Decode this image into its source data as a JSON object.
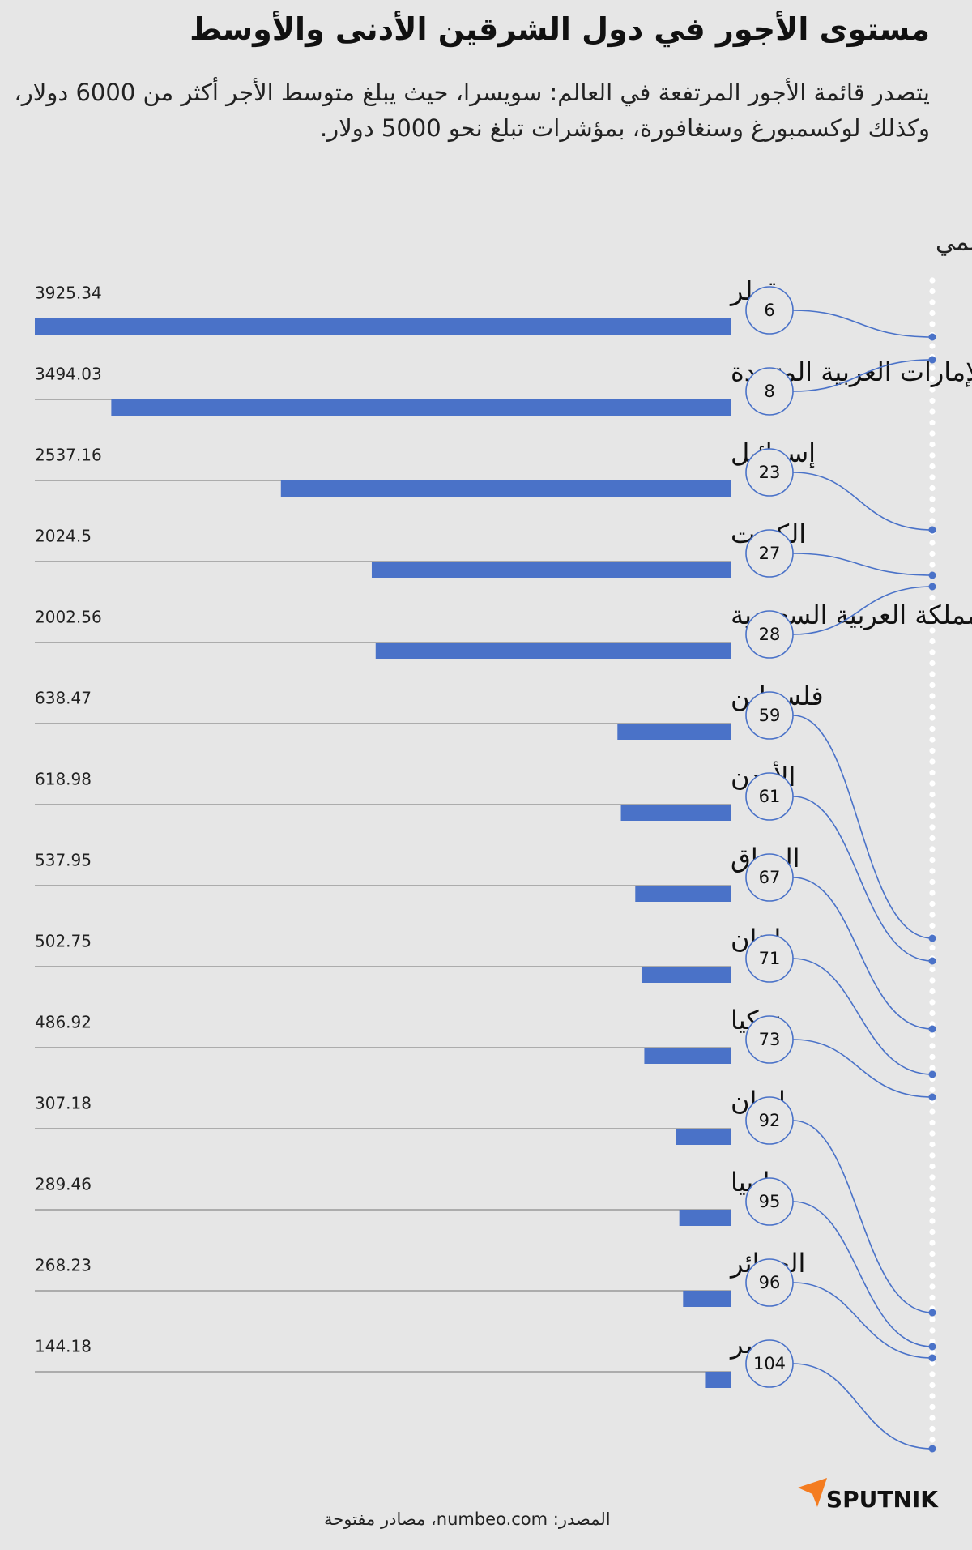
{
  "chart_data": {
    "type": "bar",
    "title": "مستوى الأجور في دول الشرقين الأدنى والأوسط",
    "subtitle": "يتصدر قائمة الأجور المرتفعة في العالم: سويسرا، حيث يبلغ متوسط الأجر أكثر من 6000 دولار، وكذلك لوكسمبورغ وسنغافورة، بمؤشرات تبلغ نحو 5000 دولار.",
    "rank_label": "المركز في التصنيف العالمي",
    "categories": [
      "قطر",
      "الإمارات العربية المتحدة",
      "إسرائيل",
      "الكويت",
      "المملكة العربية السعودية",
      "فلسطين",
      "الأردن",
      "العراق",
      "لبنان",
      "تركيا",
      "إيران",
      "ليبيا",
      "الجزائر",
      "مصر"
    ],
    "values": [
      3925.34,
      3494.03,
      2537.16,
      2024.5,
      2002.56,
      638.47,
      618.98,
      537.95,
      502.75,
      486.92,
      307.18,
      289.46,
      268.23,
      144.18
    ],
    "ranks": [
      6,
      8,
      23,
      27,
      28,
      59,
      61,
      67,
      71,
      73,
      92,
      95,
      96,
      104
    ],
    "color": "#4a72c8",
    "source": "المصدر: numbeo.com، مصادر مفتوحة",
    "brand": "SPUTNIK"
  }
}
